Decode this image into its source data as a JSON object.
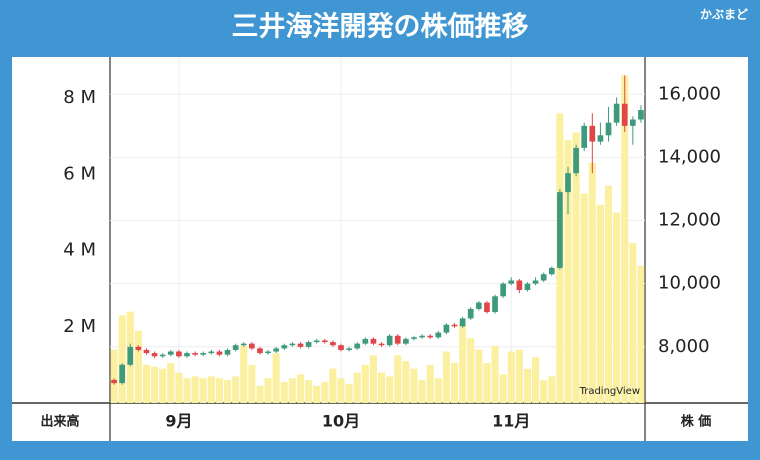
{
  "header": {
    "title": "三井海洋開発の株価推移",
    "logo": "かぶまど"
  },
  "chart_data": {
    "type": "candlestick",
    "watermark": "TradingView",
    "volume_axis_label": "出来高",
    "price_axis_label": "株 価",
    "categories": [
      null,
      null,
      null,
      null,
      null,
      null,
      null,
      null,
      "9月",
      null,
      null,
      null,
      null,
      null,
      null,
      null,
      null,
      null,
      null,
      null,
      null,
      null,
      null,
      null,
      null,
      null,
      null,
      null,
      "10月",
      null,
      null,
      null,
      null,
      null,
      null,
      null,
      null,
      null,
      null,
      null,
      null,
      null,
      null,
      null,
      null,
      null,
      null,
      null,
      null,
      "11月",
      null,
      null,
      null,
      null,
      null,
      null,
      null,
      null,
      null,
      null,
      null,
      null,
      null,
      null,
      null,
      null
    ],
    "open": [
      6950,
      6850,
      7430,
      8000,
      7900,
      7800,
      7700,
      7750,
      7850,
      7700,
      7800,
      7750,
      7800,
      7850,
      7750,
      7900,
      8050,
      8100,
      7950,
      7800,
      7850,
      7950,
      8050,
      8100,
      8000,
      8150,
      8200,
      8150,
      8050,
      7900,
      7950,
      8100,
      8250,
      8100,
      8050,
      8350,
      8100,
      8250,
      8300,
      8350,
      8300,
      8450,
      8700,
      8650,
      8900,
      9200,
      9400,
      9100,
      9600,
      10000,
      10100,
      9800,
      10000,
      10100,
      10300,
      10500,
      12900,
      13500,
      14300,
      15000,
      14500,
      14700,
      15100,
      15700,
      15000,
      15200
    ],
    "high": [
      7000,
      7480,
      8100,
      8050,
      7950,
      7850,
      7800,
      7900,
      7900,
      7850,
      7850,
      7850,
      7900,
      7900,
      7950,
      8100,
      8150,
      8150,
      8000,
      7900,
      8000,
      8100,
      8150,
      8150,
      8200,
      8250,
      8250,
      8200,
      8100,
      8000,
      8150,
      8300,
      8300,
      8150,
      8400,
      8400,
      8300,
      8350,
      8400,
      8400,
      8500,
      8750,
      8750,
      8950,
      9250,
      9450,
      9450,
      9650,
      10050,
      10200,
      10150,
      10050,
      10200,
      10350,
      10550,
      13000,
      13700,
      14400,
      15100,
      15400,
      15100,
      15600,
      15900,
      16600,
      15300,
      15650
    ],
    "low": [
      6800,
      6800,
      7380,
      7850,
      7750,
      7650,
      7650,
      7700,
      7650,
      7650,
      7700,
      7700,
      7750,
      7700,
      7700,
      7850,
      8000,
      7900,
      7750,
      7750,
      7800,
      7900,
      8000,
      7950,
      7950,
      8100,
      8100,
      8000,
      7850,
      7850,
      7900,
      8050,
      8050,
      8000,
      8000,
      8050,
      8050,
      8200,
      8250,
      8250,
      8250,
      8400,
      8600,
      8600,
      8850,
      9150,
      9050,
      9050,
      9550,
      9950,
      9700,
      9750,
      9950,
      10050,
      10250,
      10450,
      12200,
      13400,
      14200,
      13500,
      14400,
      14500,
      15000,
      14800,
      14400,
      15100
    ],
    "close": [
      6850,
      7430,
      8000,
      7900,
      7800,
      7700,
      7750,
      7850,
      7700,
      7800,
      7750,
      7800,
      7850,
      7750,
      7900,
      8050,
      8100,
      7950,
      7800,
      7850,
      7950,
      8050,
      8100,
      8000,
      8150,
      8200,
      8150,
      8050,
      7900,
      7950,
      8100,
      8250,
      8100,
      8050,
      8350,
      8100,
      8250,
      8300,
      8350,
      8300,
      8450,
      8700,
      8650,
      8900,
      9200,
      9400,
      9100,
      9600,
      10000,
      10100,
      9800,
      10000,
      10100,
      10300,
      10500,
      12900,
      13500,
      14300,
      15000,
      14500,
      14700,
      15100,
      15700,
      15000,
      15200,
      15500
    ],
    "volume": [
      1400000,
      2300000,
      2400000,
      1900000,
      1000000,
      950000,
      900000,
      1050000,
      800000,
      650000,
      700000,
      650000,
      700000,
      650000,
      600000,
      700000,
      1500000,
      1000000,
      450000,
      650000,
      1300000,
      550000,
      650000,
      750000,
      600000,
      450000,
      550000,
      900000,
      650000,
      500000,
      800000,
      1000000,
      1250000,
      800000,
      700000,
      1250000,
      1100000,
      900000,
      600000,
      1000000,
      650000,
      1350000,
      1050000,
      2050000,
      1700000,
      1400000,
      1050000,
      1500000,
      750000,
      1350000,
      1400000,
      900000,
      1200000,
      600000,
      700000,
      7600000,
      6900000,
      7100000,
      5500000,
      6300000,
      5200000,
      5700000,
      5000000,
      8600000,
      4200000,
      3600000
    ],
    "up_color": "#3f9a7d",
    "down_color": "#e0454a",
    "volume_color": "#fbf0a0",
    "ylim": [
      6220,
      17180
    ],
    "yticks": [
      {
        "value": 8000,
        "label": "8,000"
      },
      {
        "value": 10000,
        "label": "10,000"
      },
      {
        "value": 12000,
        "label": "12,000"
      },
      {
        "value": 14000,
        "label": "14,000"
      },
      {
        "value": 16000,
        "label": "16,000"
      }
    ],
    "vlim": [
      0,
      9080000
    ],
    "vticks": [
      {
        "value": 2000000,
        "label": "2 M"
      },
      {
        "value": 4000000,
        "label": "4 M"
      },
      {
        "value": 6000000,
        "label": "6 M"
      },
      {
        "value": 8000000,
        "label": "8 M"
      }
    ],
    "grid": true
  }
}
